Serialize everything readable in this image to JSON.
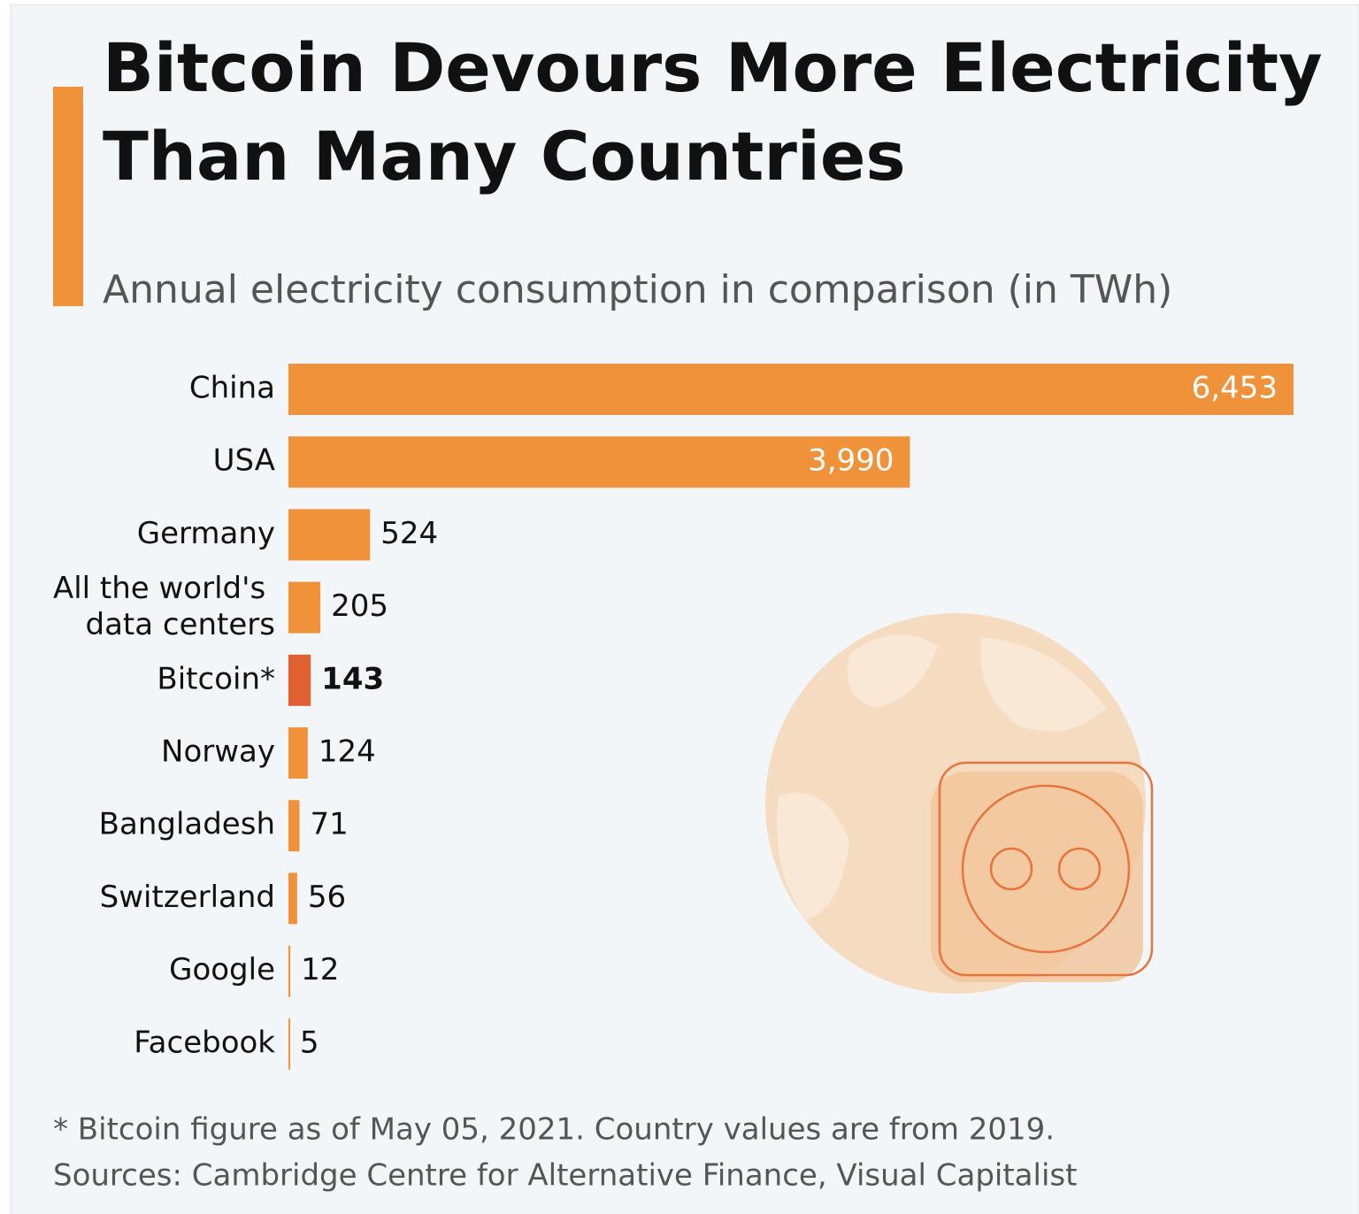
{
  "chart_data": {
    "type": "bar",
    "orientation": "horizontal",
    "title": "Bitcoin Devours More Electricity Than Many Countries",
    "subtitle": "Annual electricity consumption in comparison (in TWh)",
    "categories": [
      "China",
      "USA",
      "Germany",
      "All the world's data centers",
      "Bitcoin*",
      "Norway",
      "Bangladesh",
      "Switzerland",
      "Google",
      "Facebook"
    ],
    "values": [
      6453,
      3990,
      524,
      205,
      143,
      124,
      71,
      56,
      12,
      5
    ],
    "value_labels": [
      "6,453",
      "3,990",
      "524",
      "205",
      "143",
      "124",
      "71",
      "56",
      "12",
      "5"
    ],
    "color": "#f0923a",
    "colors": [
      "#f0923a",
      "#f0923a",
      "#f0923a",
      "#f0923a",
      "#e0612f",
      "#f0923a",
      "#f0923a",
      "#f0923a",
      "#f0923a",
      "#f0923a"
    ],
    "footnote": "* Bitcoin figure as of May 05, 2021. Country values are from 2019.",
    "source": "Sources: Cambridge Centre for Alternative Finance, Visual Capitalist"
  }
}
